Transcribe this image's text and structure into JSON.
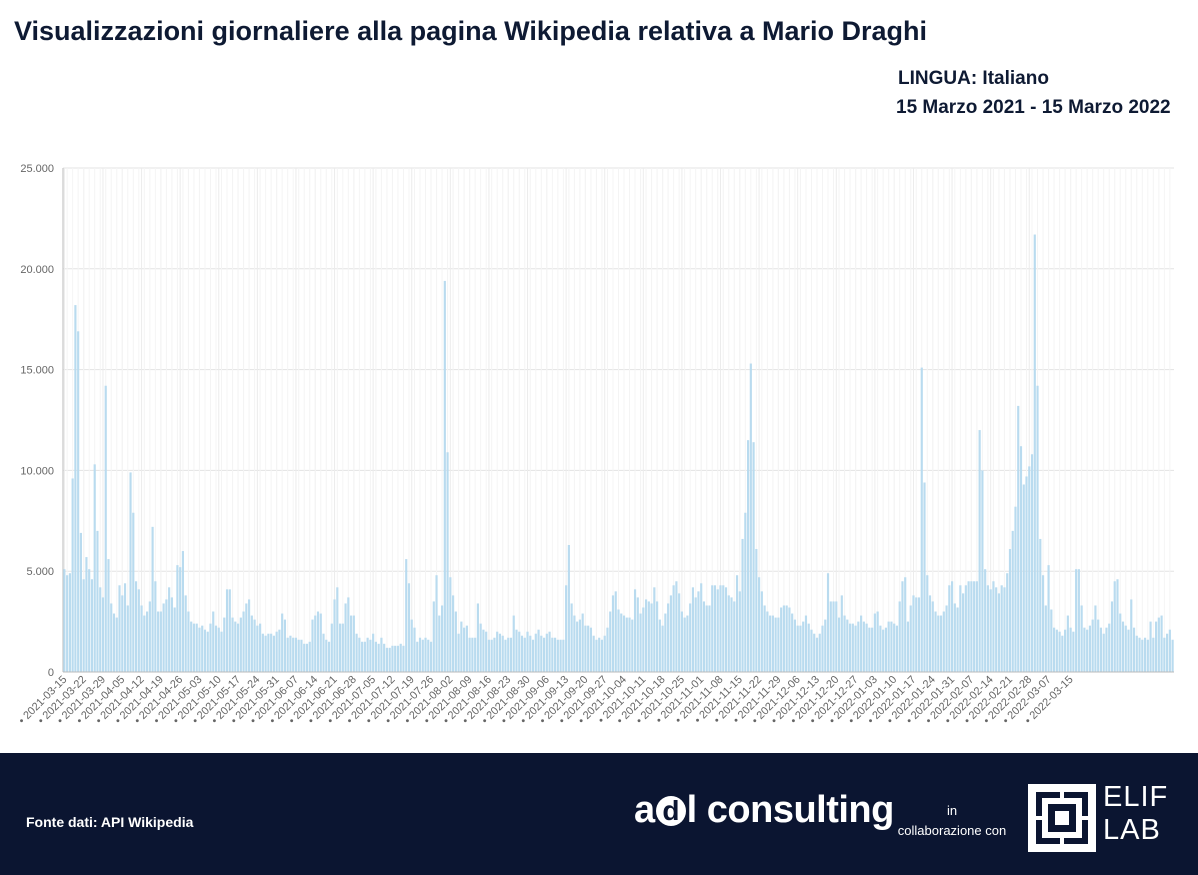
{
  "header": {
    "title": "Visualizzazioni giornaliere alla pagina Wikipedia relativa a Mario Draghi",
    "language": "LINGUA: Italiano",
    "period": "15 Marzo 2021 - 15 Marzo 2022"
  },
  "footer": {
    "source": "Fonte dati:  API Wikipedia",
    "brand_a": "a",
    "brand_d": "d",
    "brand_rest": "l consulting",
    "collab_line1": "in",
    "collab_line2": "collaborazione con",
    "partner_line1": "ELIF",
    "partner_line2": "LAB"
  },
  "colors": {
    "bar": "#b9dbef",
    "footer_bg": "#0b1531",
    "title": "#0e1a33"
  },
  "chart_data": {
    "type": "bar",
    "start_date": "2021-03-15",
    "end_date": "2022-03-15",
    "ylim": [
      0,
      25000
    ],
    "yticks": [
      "0",
      "5.000",
      "10.000",
      "15.000",
      "20.000",
      "25.000"
    ],
    "ytick_values": [
      0,
      5000,
      10000,
      15000,
      20000,
      25000
    ],
    "xtick_labels": [
      "2021-03-15",
      "2021-03-22",
      "2021-03-29",
      "2021-04-05",
      "2021-04-12",
      "2021-04-19",
      "2021-04-26",
      "2021-05-03",
      "2021-05-10",
      "2021-05-17",
      "2021-05-24",
      "2021-05-31",
      "2021-06-07",
      "2021-06-14",
      "2021-06-21",
      "2021-06-28",
      "2021-07-05",
      "2021-07-12",
      "2021-07-19",
      "2021-07-26",
      "2021-08-02",
      "2021-08-09",
      "2021-08-16",
      "2021-08-23",
      "2021-08-30",
      "2021-09-06",
      "2021-09-13",
      "2021-09-20",
      "2021-09-27",
      "2021-10-04",
      "2021-10-11",
      "2021-10-18",
      "2021-10-25",
      "2021-11-01",
      "2021-11-08",
      "2021-11-15",
      "2021-11-22",
      "2021-11-29",
      "2021-12-06",
      "2021-12-13",
      "2021-12-20",
      "2021-12-27",
      "2022-01-03",
      "2022-01-10",
      "2022-01-17",
      "2022-01-24",
      "2022-01-31",
      "2022-02-07",
      "2022-02-14",
      "2022-02-21",
      "2022-02-28",
      "2022-03-07",
      "2022-03-15"
    ],
    "grid": true,
    "legend": "none",
    "values": [
      5100,
      4800,
      4900,
      9600,
      18200,
      16900,
      6900,
      4600,
      5700,
      5100,
      4600,
      10300,
      7000,
      4200,
      3700,
      14200,
      5600,
      3400,
      2900,
      2700,
      4300,
      3800,
      4400,
      3300,
      9900,
      7900,
      4500,
      4100,
      3300,
      2800,
      3000,
      3500,
      7200,
      4500,
      3000,
      3000,
      3400,
      3600,
      4200,
      3700,
      3200,
      5300,
      5200,
      6000,
      3800,
      3000,
      2500,
      2400,
      2400,
      2200,
      2300,
      2100,
      2000,
      2400,
      3000,
      2300,
      2200,
      2000,
      2700,
      4100,
      4100,
      2700,
      2500,
      2400,
      2700,
      3000,
      3400,
      3600,
      2800,
      2600,
      2300,
      2400,
      1900,
      1800,
      1900,
      1900,
      1800,
      2000,
      2100,
      2900,
      2600,
      1700,
      1800,
      1700,
      1700,
      1600,
      1600,
      1400,
      1400,
      1500,
      2600,
      2800,
      3000,
      2900,
      1900,
      1600,
      1500,
      2400,
      3600,
      4200,
      2400,
      2400,
      3400,
      3700,
      2800,
      2800,
      1900,
      1700,
      1500,
      1500,
      1700,
      1600,
      1900,
      1500,
      1400,
      1700,
      1400,
      1200,
      1200,
      1300,
      1300,
      1300,
      1400,
      1300,
      5600,
      4400,
      2600,
      2200,
      1500,
      1700,
      1600,
      1700,
      1600,
      1500,
      3500,
      4800,
      2800,
      3300,
      19400,
      10900,
      4700,
      3800,
      3000,
      1900,
      2500,
      2200,
      2300,
      1700,
      1700,
      1700,
      3400,
      2400,
      2100,
      2000,
      1600,
      1600,
      1700,
      2000,
      1900,
      1800,
      1600,
      1700,
      1700,
      2800,
      2100,
      2000,
      1800,
      1700,
      2000,
      1800,
      1600,
      1900,
      2100,
      1800,
      1700,
      1900,
      2000,
      1700,
      1700,
      1600,
      1600,
      1600,
      4300,
      6300,
      3400,
      2800,
      2500,
      2600,
      2900,
      2300,
      2300,
      2200,
      1800,
      1600,
      1700,
      1600,
      1800,
      2200,
      3000,
      3800,
      4000,
      3100,
      2900,
      2800,
      2700,
      2700,
      2600,
      4100,
      3700,
      2900,
      3200,
      3600,
      3500,
      3400,
      4200,
      3500,
      2600,
      2300,
      2900,
      3400,
      3800,
      4300,
      4500,
      3900,
      3000,
      2700,
      2800,
      3400,
      4200,
      3700,
      4000,
      4400,
      3500,
      3300,
      3300,
      4300,
      4300,
      4100,
      4300,
      4300,
      4200,
      3800,
      3700,
      3500,
      4800,
      4000,
      6600,
      7900,
      11500,
      15300,
      11400,
      6100,
      4700,
      4000,
      3300,
      3000,
      2800,
      2800,
      2700,
      2700,
      3200,
      3300,
      3300,
      3200,
      2900,
      2600,
      2300,
      2300,
      2500,
      2800,
      2400,
      2100,
      1900,
      1700,
      1900,
      2300,
      2600,
      4900,
      3500,
      3500,
      3500,
      2700,
      3800,
      2800,
      2600,
      2400,
      2400,
      2300,
      2500,
      2800,
      2500,
      2400,
      2200,
      2200,
      2900,
      3000,
      2300,
      2100,
      2200,
      2500,
      2500,
      2400,
      2300,
      3500,
      4500,
      4700,
      2500,
      3300,
      3800,
      3700,
      3700,
      15100,
      9400,
      4800,
      3800,
      3500,
      3000,
      2800,
      2800,
      3000,
      3300,
      4300,
      4500,
      3400,
      3200,
      4300,
      3900,
      4300,
      4500,
      4500,
      4500,
      4500,
      12000,
      10000,
      5100,
      4300,
      4100,
      4500,
      4200,
      3900,
      4300,
      4200,
      4900,
      6100,
      7000,
      8200,
      13200,
      11200,
      9300,
      9700,
      10200,
      10800,
      21700,
      14200,
      6600,
      4800,
      3300,
      5300,
      3100,
      2200,
      2100,
      2000,
      1800,
      2100,
      2800,
      2200,
      2000,
      5100,
      5100,
      3300,
      2200,
      2100,
      2300,
      2600,
      3300,
      2600,
      2200,
      1900,
      2200,
      2400,
      3500,
      4500,
      4600,
      2900,
      2500,
      2300,
      2100,
      3600,
      2200,
      1800,
      1700,
      1600,
      1700,
      1600,
      2500,
      1700,
      2500,
      2700,
      2800,
      1700,
      1900,
      2100,
      1600
    ]
  }
}
